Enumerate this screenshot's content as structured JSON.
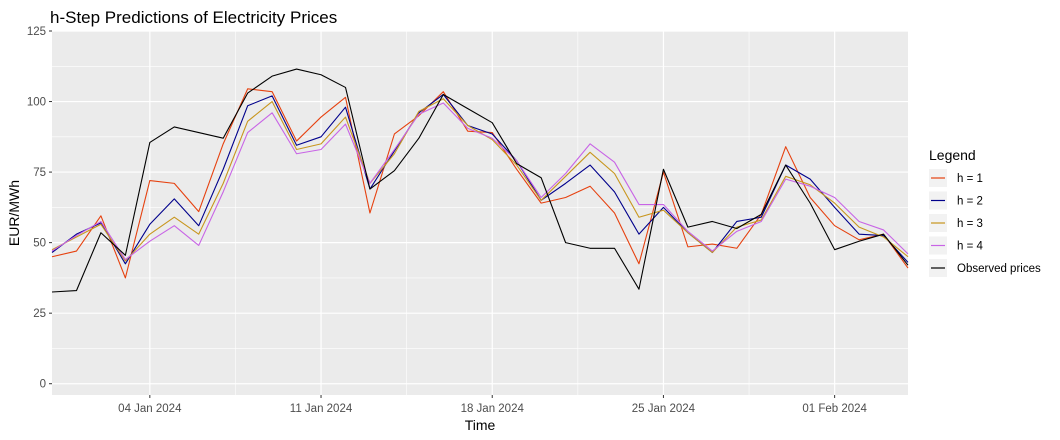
{
  "chart_data": {
    "type": "line",
    "title": "h-Step Predictions of Electricity Prices",
    "xlabel": "Time",
    "ylabel": "EUR/MWh",
    "ylim": [
      -4,
      125
    ],
    "yticks": [
      0,
      25,
      50,
      75,
      100,
      125
    ],
    "x_start": "2023-12-31",
    "x_end": "2024-02-04",
    "xticks": [
      {
        "date": "2024-01-04",
        "label": "04 Jan 2024"
      },
      {
        "date": "2024-01-11",
        "label": "11 Jan 2024"
      },
      {
        "date": "2024-01-18",
        "label": "18 Jan 2024"
      },
      {
        "date": "2024-01-25",
        "label": "25 Jan 2024"
      },
      {
        "date": "2024-02-01",
        "label": "01 Feb 2024"
      }
    ],
    "grid": true,
    "legend": {
      "title": "Legend",
      "position": "right"
    },
    "series": [
      {
        "name": "h = 1",
        "color": "#e6410f",
        "points": [
          [
            "2023-12-31",
            45
          ],
          [
            "2024-01-01",
            47
          ],
          [
            "2024-01-02",
            59.5
          ],
          [
            "2024-01-03",
            37.5
          ],
          [
            "2024-01-04",
            72
          ],
          [
            "2024-01-05",
            71
          ],
          [
            "2024-01-06",
            61
          ],
          [
            "2024-01-07",
            85
          ],
          [
            "2024-01-08",
            104.5
          ],
          [
            "2024-01-09",
            103.5
          ],
          [
            "2024-01-10",
            86
          ],
          [
            "2024-01-11",
            94.5
          ],
          [
            "2024-01-12",
            101.5
          ],
          [
            "2024-01-13",
            60.5
          ],
          [
            "2024-01-14",
            88.5
          ],
          [
            "2024-01-15",
            95
          ],
          [
            "2024-01-16",
            103.5
          ],
          [
            "2024-01-17",
            89.5
          ],
          [
            "2024-01-18",
            89
          ],
          [
            "2024-01-19",
            76
          ],
          [
            "2024-01-20",
            64
          ],
          [
            "2024-01-21",
            66
          ],
          [
            "2024-01-22",
            70
          ],
          [
            "2024-01-23",
            60.5
          ],
          [
            "2024-01-24",
            42.5
          ],
          [
            "2024-01-25",
            75
          ],
          [
            "2024-01-26",
            48.5
          ],
          [
            "2024-01-27",
            49.5
          ],
          [
            "2024-01-28",
            48
          ],
          [
            "2024-01-29",
            60
          ],
          [
            "2024-01-30",
            84
          ],
          [
            "2024-01-31",
            66
          ],
          [
            "2024-02-01",
            56
          ],
          [
            "2024-02-02",
            51
          ],
          [
            "2024-02-03",
            53
          ],
          [
            "2024-02-04",
            41
          ]
        ]
      },
      {
        "name": "h = 2",
        "color": "#00008b",
        "points": [
          [
            "2023-12-31",
            46.5
          ],
          [
            "2024-01-01",
            53
          ],
          [
            "2024-01-02",
            57
          ],
          [
            "2024-01-03",
            42.5
          ],
          [
            "2024-01-04",
            56.5
          ],
          [
            "2024-01-05",
            65.5
          ],
          [
            "2024-01-06",
            56
          ],
          [
            "2024-01-07",
            76
          ],
          [
            "2024-01-08",
            98.5
          ],
          [
            "2024-01-09",
            102
          ],
          [
            "2024-01-10",
            84.5
          ],
          [
            "2024-01-11",
            87.5
          ],
          [
            "2024-01-12",
            98
          ],
          [
            "2024-01-13",
            69
          ],
          [
            "2024-01-14",
            82.5
          ],
          [
            "2024-01-15",
            96
          ],
          [
            "2024-01-16",
            102.5
          ],
          [
            "2024-01-17",
            91.5
          ],
          [
            "2024-01-18",
            88.5
          ],
          [
            "2024-01-19",
            79
          ],
          [
            "2024-01-20",
            65
          ],
          [
            "2024-01-21",
            71
          ],
          [
            "2024-01-22",
            77.5
          ],
          [
            "2024-01-23",
            68
          ],
          [
            "2024-01-24",
            53
          ],
          [
            "2024-01-25",
            62.5
          ],
          [
            "2024-01-26",
            53.5
          ],
          [
            "2024-01-27",
            46.5
          ],
          [
            "2024-01-28",
            57.5
          ],
          [
            "2024-01-29",
            59
          ],
          [
            "2024-01-30",
            77.5
          ],
          [
            "2024-01-31",
            72.5
          ],
          [
            "2024-02-01",
            62.5
          ],
          [
            "2024-02-02",
            53
          ],
          [
            "2024-02-03",
            52.5
          ],
          [
            "2024-02-04",
            43
          ]
        ]
      },
      {
        "name": "h = 3",
        "color": "#c8961e",
        "points": [
          [
            "2023-12-31",
            47.5
          ],
          [
            "2024-01-01",
            52
          ],
          [
            "2024-01-02",
            56.5
          ],
          [
            "2024-01-03",
            43.5
          ],
          [
            "2024-01-04",
            53
          ],
          [
            "2024-01-05",
            59
          ],
          [
            "2024-01-06",
            53
          ],
          [
            "2024-01-07",
            71
          ],
          [
            "2024-01-08",
            93
          ],
          [
            "2024-01-09",
            100
          ],
          [
            "2024-01-10",
            83
          ],
          [
            "2024-01-11",
            85
          ],
          [
            "2024-01-12",
            94.5
          ],
          [
            "2024-01-13",
            71
          ],
          [
            "2024-01-14",
            81.5
          ],
          [
            "2024-01-15",
            96.5
          ],
          [
            "2024-01-16",
            101
          ],
          [
            "2024-01-17",
            91.5
          ],
          [
            "2024-01-18",
            86.5
          ],
          [
            "2024-01-19",
            77.5
          ],
          [
            "2024-01-20",
            65
          ],
          [
            "2024-01-21",
            73.5
          ],
          [
            "2024-01-22",
            82
          ],
          [
            "2024-01-23",
            74.5
          ],
          [
            "2024-01-24",
            59
          ],
          [
            "2024-01-25",
            61.5
          ],
          [
            "2024-01-26",
            53.5
          ],
          [
            "2024-01-27",
            46.5
          ],
          [
            "2024-01-28",
            55.5
          ],
          [
            "2024-01-29",
            58
          ],
          [
            "2024-01-30",
            73.5
          ],
          [
            "2024-01-31",
            70.5
          ],
          [
            "2024-02-01",
            64
          ],
          [
            "2024-02-02",
            55.5
          ],
          [
            "2024-02-03",
            52
          ],
          [
            "2024-02-04",
            45
          ]
        ]
      },
      {
        "name": "h = 4",
        "color": "#c864e6",
        "points": [
          [
            "2023-12-31",
            47
          ],
          [
            "2024-01-01",
            52.5
          ],
          [
            "2024-01-02",
            57.5
          ],
          [
            "2024-01-03",
            44
          ],
          [
            "2024-01-04",
            50.5
          ],
          [
            "2024-01-05",
            56
          ],
          [
            "2024-01-06",
            49
          ],
          [
            "2024-01-07",
            68
          ],
          [
            "2024-01-08",
            89
          ],
          [
            "2024-01-09",
            96
          ],
          [
            "2024-01-10",
            81.5
          ],
          [
            "2024-01-11",
            83
          ],
          [
            "2024-01-12",
            92
          ],
          [
            "2024-01-13",
            71
          ],
          [
            "2024-01-14",
            83
          ],
          [
            "2024-01-15",
            95.5
          ],
          [
            "2024-01-16",
            99.5
          ],
          [
            "2024-01-17",
            90.5
          ],
          [
            "2024-01-18",
            87
          ],
          [
            "2024-01-19",
            79
          ],
          [
            "2024-01-20",
            66
          ],
          [
            "2024-01-21",
            74.5
          ],
          [
            "2024-01-22",
            85
          ],
          [
            "2024-01-23",
            78.5
          ],
          [
            "2024-01-24",
            63.5
          ],
          [
            "2024-01-25",
            63.5
          ],
          [
            "2024-01-26",
            54
          ],
          [
            "2024-01-27",
            47
          ],
          [
            "2024-01-28",
            54
          ],
          [
            "2024-01-29",
            57.5
          ],
          [
            "2024-01-30",
            72.5
          ],
          [
            "2024-01-31",
            70
          ],
          [
            "2024-02-01",
            66
          ],
          [
            "2024-02-02",
            57.5
          ],
          [
            "2024-02-03",
            54.5
          ],
          [
            "2024-02-04",
            46
          ]
        ]
      },
      {
        "name": "Observed prices",
        "color": "#000000",
        "points": [
          [
            "2023-12-31",
            32.5
          ],
          [
            "2024-01-01",
            33
          ],
          [
            "2024-01-02",
            53.5
          ],
          [
            "2024-01-03",
            45.5
          ],
          [
            "2024-01-04",
            85.5
          ],
          [
            "2024-01-05",
            91
          ],
          [
            "2024-01-06",
            89
          ],
          [
            "2024-01-07",
            87
          ],
          [
            "2024-01-08",
            103
          ],
          [
            "2024-01-09",
            109
          ],
          [
            "2024-01-10",
            111.5
          ],
          [
            "2024-01-11",
            109.5
          ],
          [
            "2024-01-12",
            105
          ],
          [
            "2024-01-13",
            69
          ],
          [
            "2024-01-14",
            75.5
          ],
          [
            "2024-01-15",
            87
          ],
          [
            "2024-01-16",
            102.5
          ],
          [
            "2024-01-17",
            97.5
          ],
          [
            "2024-01-18",
            92.5
          ],
          [
            "2024-01-19",
            78
          ],
          [
            "2024-01-20",
            73
          ],
          [
            "2024-01-21",
            50
          ],
          [
            "2024-01-22",
            48
          ],
          [
            "2024-01-23",
            48
          ],
          [
            "2024-01-24",
            33.5
          ],
          [
            "2024-01-25",
            76
          ],
          [
            "2024-01-26",
            55.5
          ],
          [
            "2024-01-27",
            57.5
          ],
          [
            "2024-01-28",
            55
          ],
          [
            "2024-01-29",
            60
          ],
          [
            "2024-01-30",
            77.5
          ],
          [
            "2024-01-31",
            64
          ],
          [
            "2024-02-01",
            47.5
          ],
          [
            "2024-02-02",
            50.5
          ],
          [
            "2024-02-03",
            53
          ],
          [
            "2024-02-04",
            42
          ]
        ]
      }
    ]
  }
}
